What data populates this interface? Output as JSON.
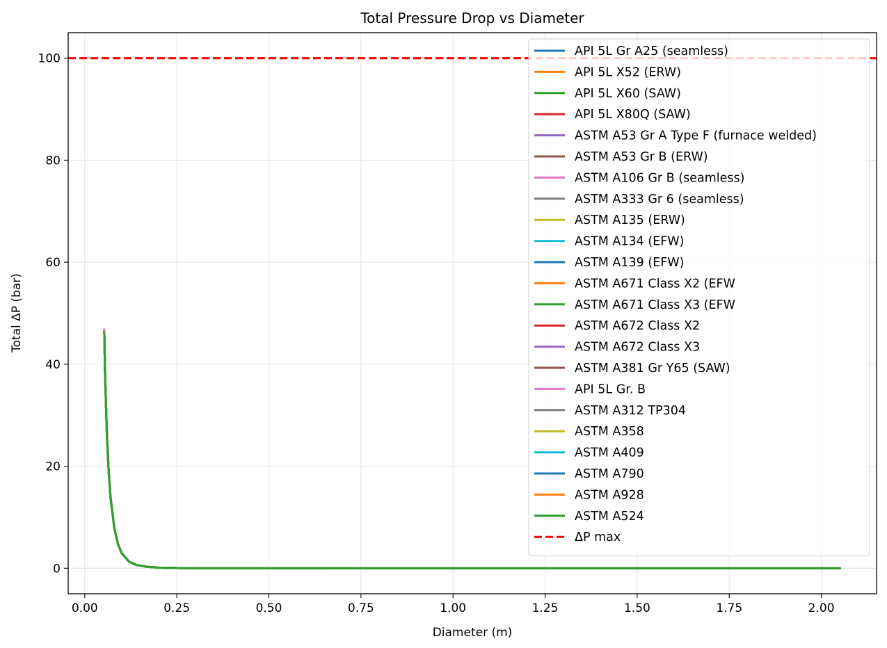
{
  "chart_data": {
    "type": "line",
    "title": "Total Pressure Drop vs Diameter",
    "xlabel": "Diameter (m)",
    "ylabel": "Total ΔP (bar)",
    "xlim": [
      -0.045,
      2.15
    ],
    "ylim": [
      -5,
      105
    ],
    "xticks": [
      0.0,
      0.25,
      0.5,
      0.75,
      1.0,
      1.25,
      1.5,
      1.75,
      2.0
    ],
    "xtick_labels": [
      "0.00",
      "0.25",
      "0.50",
      "0.75",
      "1.00",
      "1.25",
      "1.50",
      "1.75",
      "2.00"
    ],
    "yticks": [
      0,
      20,
      40,
      60,
      80,
      100
    ],
    "ytick_labels": [
      "0",
      "20",
      "40",
      "60",
      "80",
      "100"
    ],
    "grid": true,
    "legend_position": "top-right",
    "x": [
      0.053,
      0.055,
      0.06,
      0.065,
      0.07,
      0.08,
      0.09,
      0.1,
      0.12,
      0.14,
      0.17,
      0.2,
      0.25,
      0.3,
      0.4,
      0.5,
      0.75,
      1.0,
      1.5,
      2.053
    ],
    "series": [
      {
        "name": "API 5L Gr A25 (seamless)",
        "color": "#1f77b4",
        "values": [
          46.8,
          38.5,
          26.5,
          19.0,
          14.0,
          8.0,
          4.8,
          3.0,
          1.3,
          0.65,
          0.28,
          0.13,
          0.05,
          0.02,
          0.005,
          0.002,
          0.0,
          0.0,
          0.0,
          0.0
        ]
      },
      {
        "name": "API 5L X52 (ERW)",
        "color": "#ff7f0e",
        "values": [
          46.8,
          38.5,
          26.5,
          19.0,
          14.0,
          8.0,
          4.8,
          3.0,
          1.3,
          0.65,
          0.28,
          0.13,
          0.05,
          0.02,
          0.005,
          0.002,
          0.0,
          0.0,
          0.0,
          0.0
        ]
      },
      {
        "name": "API 5L X60 (SAW)",
        "color": "#2ca02c",
        "values": [
          46.8,
          38.5,
          26.5,
          19.0,
          14.0,
          8.0,
          4.8,
          3.0,
          1.3,
          0.65,
          0.28,
          0.13,
          0.05,
          0.02,
          0.005,
          0.002,
          0.0,
          0.0,
          0.0,
          0.0
        ]
      },
      {
        "name": "API 5L X80Q (SAW)",
        "color": "#d62728",
        "values": [
          46.8,
          38.5,
          26.5,
          19.0,
          14.0,
          8.0,
          4.8,
          3.0,
          1.3,
          0.65,
          0.28,
          0.13,
          0.05,
          0.02,
          0.005,
          0.002,
          0.0,
          0.0,
          0.0,
          0.0
        ]
      },
      {
        "name": "ASTM A53 Gr A Type F (furnace welded)",
        "color": "#9467bd",
        "values": [
          46.8,
          38.5,
          26.5,
          19.0,
          14.0,
          8.0,
          4.8,
          3.0,
          1.3,
          0.65,
          0.28,
          0.13,
          0.05,
          0.02,
          0.005,
          0.002,
          0.0,
          0.0,
          0.0,
          0.0
        ]
      },
      {
        "name": "ASTM A53 Gr B (ERW)",
        "color": "#8c564b",
        "values": [
          46.8,
          38.5,
          26.5,
          19.0,
          14.0,
          8.0,
          4.8,
          3.0,
          1.3,
          0.65,
          0.28,
          0.13,
          0.05,
          0.02,
          0.005,
          0.002,
          0.0,
          0.0,
          0.0,
          0.0
        ]
      },
      {
        "name": "ASTM A106 Gr B (seamless)",
        "color": "#e377c2",
        "values": [
          47.0,
          38.6,
          26.6,
          19.1,
          14.1,
          8.1,
          4.8,
          3.0,
          1.3,
          0.65,
          0.28,
          0.13,
          0.05,
          0.02,
          0.005,
          0.002,
          0.0,
          0.0,
          0.0,
          0.0
        ]
      },
      {
        "name": "ASTM A333 Gr 6 (seamless)",
        "color": "#7f7f7f",
        "values": [
          46.8,
          38.5,
          26.5,
          19.0,
          14.0,
          8.0,
          4.8,
          3.0,
          1.3,
          0.65,
          0.28,
          0.13,
          0.05,
          0.02,
          0.005,
          0.002,
          0.0,
          0.0,
          0.0,
          0.0
        ]
      },
      {
        "name": "ASTM A135 (ERW)",
        "color": "#bcbd22",
        "values": [
          46.8,
          38.5,
          26.5,
          19.0,
          14.0,
          8.0,
          4.8,
          3.0,
          1.3,
          0.65,
          0.28,
          0.13,
          0.05,
          0.02,
          0.005,
          0.002,
          0.0,
          0.0,
          0.0,
          0.0
        ]
      },
      {
        "name": "ASTM A134 (EFW)",
        "color": "#17becf",
        "values": [
          46.8,
          38.5,
          26.5,
          19.0,
          14.0,
          8.0,
          4.8,
          3.0,
          1.3,
          0.65,
          0.28,
          0.13,
          0.05,
          0.02,
          0.005,
          0.002,
          0.0,
          0.0,
          0.0,
          0.0
        ]
      },
      {
        "name": "ASTM A139 (EFW)",
        "color": "#1f77b4",
        "values": [
          46.8,
          38.5,
          26.5,
          19.0,
          14.0,
          8.0,
          4.8,
          3.0,
          1.3,
          0.65,
          0.28,
          0.13,
          0.05,
          0.02,
          0.005,
          0.002,
          0.0,
          0.0,
          0.0,
          0.0
        ]
      },
      {
        "name": "ASTM A671 Class X2 (EFW",
        "color": "#ff7f0e",
        "values": [
          46.8,
          38.5,
          26.5,
          19.0,
          14.0,
          8.0,
          4.8,
          3.0,
          1.3,
          0.65,
          0.28,
          0.13,
          0.05,
          0.02,
          0.005,
          0.002,
          0.0,
          0.0,
          0.0,
          0.0
        ]
      },
      {
        "name": "ASTM A671 Class X3 (EFW",
        "color": "#2ca02c",
        "values": [
          46.8,
          38.5,
          26.5,
          19.0,
          14.0,
          8.0,
          4.8,
          3.0,
          1.3,
          0.65,
          0.28,
          0.13,
          0.05,
          0.02,
          0.005,
          0.002,
          0.0,
          0.0,
          0.0,
          0.0
        ]
      },
      {
        "name": "ASTM A672 Class X2",
        "color": "#d62728",
        "values": [
          46.8,
          38.5,
          26.5,
          19.0,
          14.0,
          8.0,
          4.8,
          3.0,
          1.3,
          0.65,
          0.28,
          0.13,
          0.05,
          0.02,
          0.005,
          0.002,
          0.0,
          0.0,
          0.0,
          0.0
        ]
      },
      {
        "name": "ASTM A672 Class X3",
        "color": "#9467bd",
        "values": [
          46.8,
          38.5,
          26.5,
          19.0,
          14.0,
          8.0,
          4.8,
          3.0,
          1.3,
          0.65,
          0.28,
          0.13,
          0.05,
          0.02,
          0.005,
          0.002,
          0.0,
          0.0,
          0.0,
          0.0
        ]
      },
      {
        "name": "ASTM A381 Gr Y65 (SAW)",
        "color": "#8c564b",
        "values": [
          46.8,
          38.5,
          26.5,
          19.0,
          14.0,
          8.0,
          4.8,
          3.0,
          1.3,
          0.65,
          0.28,
          0.13,
          0.05,
          0.02,
          0.005,
          0.002,
          0.0,
          0.0,
          0.0,
          0.0
        ]
      },
      {
        "name": "API 5L Gr. B",
        "color": "#e377c2",
        "values": [
          46.8,
          38.5,
          26.5,
          19.0,
          14.0,
          8.0,
          4.8,
          3.0,
          1.3,
          0.65,
          0.28,
          0.13,
          0.05,
          0.02,
          0.005,
          0.002,
          0.0,
          0.0,
          0.0,
          0.0
        ]
      },
      {
        "name": "ASTM A312 TP304",
        "color": "#7f7f7f",
        "values": [
          46.5,
          38.3,
          26.4,
          18.9,
          13.9,
          8.0,
          4.8,
          3.0,
          1.3,
          0.65,
          0.28,
          0.13,
          0.05,
          0.02,
          0.005,
          0.002,
          0.0,
          0.0,
          0.0,
          0.0
        ]
      },
      {
        "name": "ASTM A358",
        "color": "#bcbd22",
        "values": [
          46.5,
          38.3,
          26.4,
          18.9,
          13.9,
          8.0,
          4.8,
          3.0,
          1.3,
          0.65,
          0.28,
          0.13,
          0.05,
          0.02,
          0.005,
          0.002,
          0.0,
          0.0,
          0.0,
          0.0
        ]
      },
      {
        "name": "ASTM A409",
        "color": "#17becf",
        "values": [
          46.5,
          38.3,
          26.4,
          18.9,
          13.9,
          8.0,
          4.8,
          3.0,
          1.3,
          0.65,
          0.28,
          0.13,
          0.05,
          0.02,
          0.005,
          0.002,
          0.0,
          0.0,
          0.0,
          0.0
        ]
      },
      {
        "name": "ASTM A790",
        "color": "#1f77b4",
        "values": [
          46.5,
          38.3,
          26.4,
          18.9,
          13.9,
          8.0,
          4.8,
          3.0,
          1.3,
          0.65,
          0.28,
          0.13,
          0.05,
          0.02,
          0.005,
          0.002,
          0.0,
          0.0,
          0.0,
          0.0
        ]
      },
      {
        "name": "ASTM A928",
        "color": "#ff7f0e",
        "values": [
          46.5,
          38.3,
          26.4,
          18.9,
          13.9,
          8.0,
          4.8,
          3.0,
          1.3,
          0.65,
          0.28,
          0.13,
          0.05,
          0.02,
          0.005,
          0.002,
          0.0,
          0.0,
          0.0,
          0.0
        ]
      },
      {
        "name": "ASTM A524",
        "color": "#2ca02c",
        "values": [
          46.3,
          38.2,
          26.3,
          18.9,
          13.9,
          8.0,
          4.8,
          3.0,
          1.3,
          0.65,
          0.28,
          0.13,
          0.05,
          0.02,
          0.005,
          0.002,
          0.0,
          0.0,
          0.0,
          0.0
        ]
      }
    ],
    "reference_line": {
      "name": "ΔP max",
      "value": 100,
      "color": "#ff0000",
      "style": "dashed"
    }
  }
}
